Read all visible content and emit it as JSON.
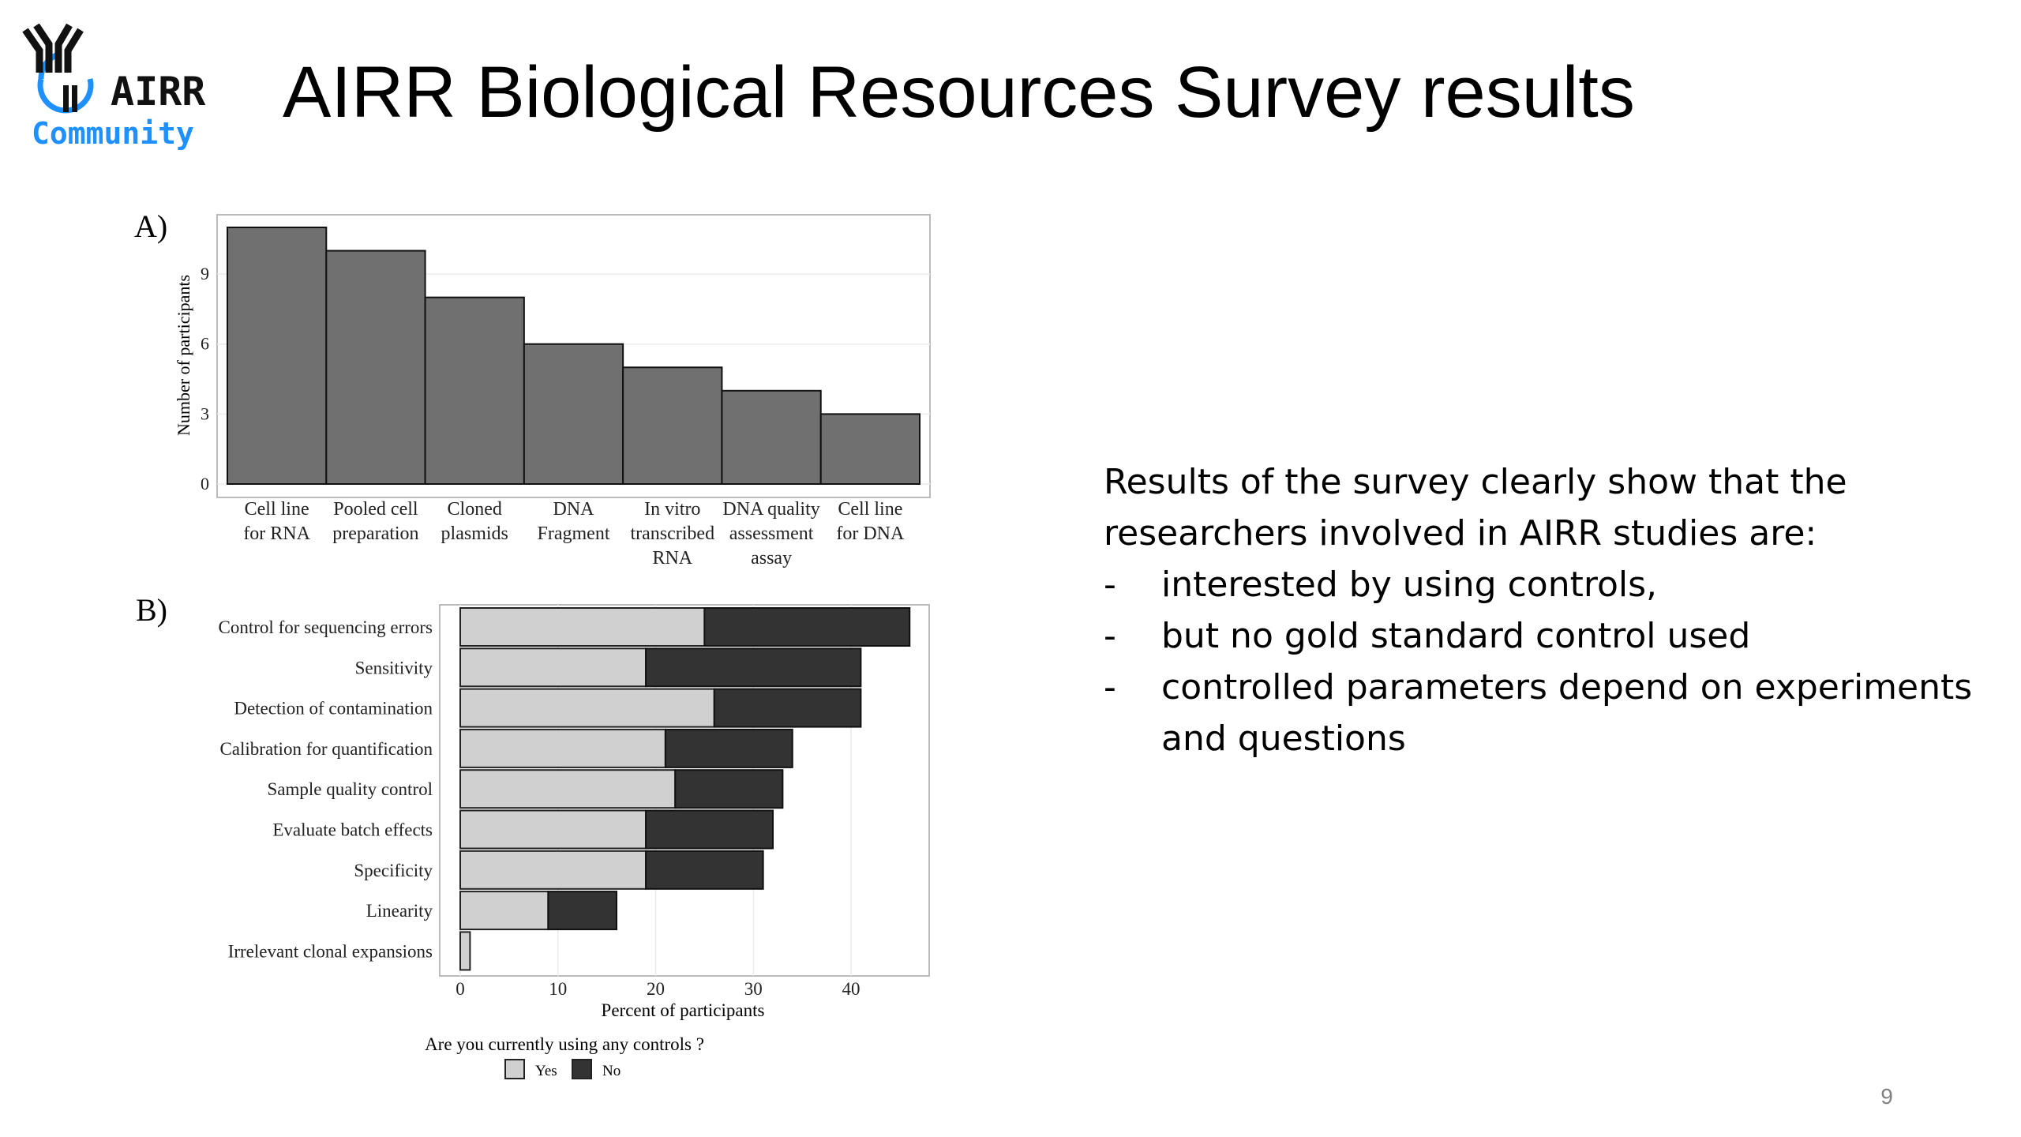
{
  "logo": {
    "text_line1": "AIRR",
    "text_line2": "Community"
  },
  "slide": {
    "title": "AIRR Biological Resources Survey results",
    "page_number": "9"
  },
  "body": {
    "intro": "Results of the survey clearly show that the researchers involved in AIRR studies are:",
    "bullets": [
      {
        "marker": "-",
        "text": "interested by using controls,"
      },
      {
        "marker": "-",
        "text": "but no gold standard control used"
      },
      {
        "marker": "-",
        "text": "controlled parameters depend on experiments and questions"
      }
    ]
  },
  "colors": {
    "bar_a": "#707070",
    "yes": "#d0d0d0",
    "no": "#333333",
    "logo_blue": "#1e90ff"
  },
  "chart_data": [
    {
      "panel_label": "A)",
      "type": "bar",
      "categories": [
        [
          "Cell line",
          "for RNA"
        ],
        [
          "Pooled cell",
          "preparation"
        ],
        [
          "Cloned",
          "plasmids"
        ],
        [
          "DNA",
          "Fragment"
        ],
        [
          "In vitro",
          "transcribed",
          "RNA"
        ],
        [
          "DNA quality",
          "assessment",
          "assay"
        ],
        [
          "Cell line",
          "for DNA"
        ]
      ],
      "values": [
        11,
        10,
        8,
        6,
        5,
        4,
        3
      ],
      "ylabel": "Number of participants",
      "xlabel": "",
      "yticks": [
        0,
        3,
        6,
        9
      ],
      "ylim": [
        0,
        11.5
      ],
      "grid": true
    },
    {
      "panel_label": "B)",
      "type": "bar",
      "orientation": "horizontal",
      "stacked": true,
      "categories": [
        "Control for sequencing errors",
        "Sensitivity",
        "Detection of contamination",
        "Calibration for quantification",
        "Sample quality control",
        "Evaluate batch effects",
        "Specificity",
        "Linearity",
        "Irrelevant clonal expansions"
      ],
      "series": [
        {
          "name": "Yes",
          "values": [
            25,
            19,
            26,
            21,
            22,
            19,
            19,
            9,
            1
          ]
        },
        {
          "name": "No",
          "values": [
            21,
            22,
            15,
            13,
            11,
            13,
            12,
            7,
            0
          ]
        }
      ],
      "xlabel": "Percent of participants",
      "xticks": [
        0,
        10,
        20,
        30,
        40
      ],
      "xlim": [
        0,
        48
      ],
      "legend_title": "Are you currently using any controls ?",
      "legend_position": "bottom",
      "grid": true
    }
  ]
}
